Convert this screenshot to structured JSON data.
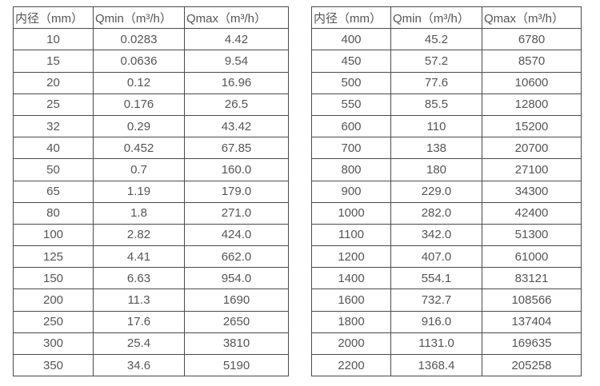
{
  "colors": {
    "border": "#4a4a4a",
    "text": "#555555",
    "background": "#ffffff"
  },
  "tables": [
    {
      "name": "flow-table-left",
      "headers": [
        "内径（mm）",
        "Qmin（m³/h）",
        "Qmax（m³/h）"
      ],
      "rows": [
        [
          "10",
          "0.0283",
          "4.42"
        ],
        [
          "15",
          "0.0636",
          "9.54"
        ],
        [
          "20",
          "0.12",
          "16.96"
        ],
        [
          "25",
          "0.176",
          "26.5"
        ],
        [
          "32",
          "0.29",
          "43.42"
        ],
        [
          "40",
          "0.452",
          "67.85"
        ],
        [
          "50",
          "0.7",
          "160.0"
        ],
        [
          "65",
          "1.19",
          "179.0"
        ],
        [
          "80",
          "1.8",
          "271.0"
        ],
        [
          "100",
          "2.82",
          "424.0"
        ],
        [
          "125",
          "4.41",
          "662.0"
        ],
        [
          "150",
          "6.63",
          "954.0"
        ],
        [
          "200",
          "11.3",
          "1690"
        ],
        [
          "250",
          "17.6",
          "2650"
        ],
        [
          "300",
          "25.4",
          "3810"
        ],
        [
          "350",
          "34.6",
          "5190"
        ]
      ]
    },
    {
      "name": "flow-table-right",
      "headers": [
        "内径（mm）",
        "Qmin（m³/h）",
        "Qmax（m³/h）"
      ],
      "rows": [
        [
          "400",
          "45.2",
          "6780"
        ],
        [
          "450",
          "57.2",
          "8570"
        ],
        [
          "500",
          "77.6",
          "10600"
        ],
        [
          "550",
          "85.5",
          "12800"
        ],
        [
          "600",
          "110",
          "15200"
        ],
        [
          "700",
          "138",
          "20700"
        ],
        [
          "800",
          "180",
          "27100"
        ],
        [
          "900",
          "229.0",
          "34300"
        ],
        [
          "1000",
          "282.0",
          "42400"
        ],
        [
          "1100",
          "342.0",
          "51300"
        ],
        [
          "1200",
          "407.0",
          "61000"
        ],
        [
          "1400",
          "554.1",
          "83121"
        ],
        [
          "1600",
          "732.7",
          "108566"
        ],
        [
          "1800",
          "916.0",
          "137404"
        ],
        [
          "2000",
          "1131.0",
          "169635"
        ],
        [
          "2200",
          "1368.4",
          "205258"
        ]
      ]
    }
  ]
}
